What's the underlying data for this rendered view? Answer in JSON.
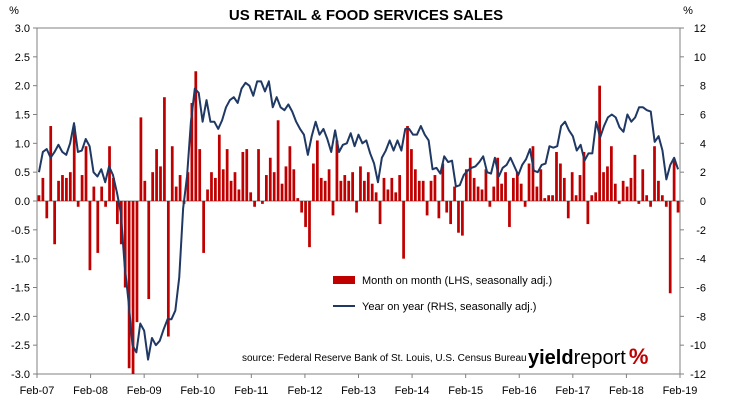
{
  "chart_data": {
    "type": "bar",
    "title": "US RETAIL & FOOD SERVICES SALES",
    "left_unit": "%",
    "right_unit": "%",
    "x_labels": [
      "Feb-07",
      "Feb-08",
      "Feb-09",
      "Feb-10",
      "Feb-11",
      "Feb-12",
      "Feb-13",
      "Feb-14",
      "Feb-15",
      "Feb-16",
      "Feb-17",
      "Feb-18",
      "Feb-19"
    ],
    "left_ticks": [
      "3.0",
      "2.5",
      "2.0",
      "1.5",
      "1.0",
      "0.5",
      "0.0",
      "-0.5",
      "-1.0",
      "-1.5",
      "-2.0",
      "-2.5",
      "-3.0"
    ],
    "right_ticks": [
      "12",
      "10",
      "8",
      "6",
      "4",
      "2",
      "0",
      "-2",
      "-4",
      "-6",
      "-8",
      "-10",
      "-12"
    ],
    "ylim_left": [
      -3,
      3
    ],
    "ylim_right": [
      -12,
      12
    ],
    "series": [
      {
        "name": "Month on month (LHS, seasonally adj.)",
        "kind": "bar",
        "color": "#c00000",
        "axis": "left",
        "values": [
          0.1,
          0.4,
          -0.3,
          1.3,
          -0.75,
          0.35,
          0.45,
          0.4,
          0.5,
          1.3,
          -0.1,
          0.45,
          0.95,
          -1.2,
          0.25,
          -0.9,
          0.25,
          -0.1,
          0.95,
          0.4,
          -0.4,
          -0.75,
          -1.5,
          -2.9,
          -3.0,
          -2.1,
          1.45,
          0.35,
          -1.7,
          0.5,
          0.9,
          0.6,
          1.8,
          -2.35,
          0.95,
          0.25,
          0.45,
          -0.05,
          0.5,
          1.7,
          2.25,
          0.9,
          -0.9,
          0.2,
          0.5,
          0.4,
          1.15,
          0.55,
          0.9,
          0.35,
          0.5,
          0.2,
          0.85,
          0.9,
          0.15,
          -0.1,
          0.9,
          -0.05,
          0.45,
          0.75,
          0.5,
          1.4,
          0.3,
          0.6,
          0.95,
          0.55,
          0.05,
          -0.2,
          -0.45,
          -0.8,
          0.65,
          1.05,
          0.4,
          0.35,
          0.55,
          -0.25,
          1.05,
          0.35,
          0.45,
          0.35,
          0.5,
          -0.2,
          0.6,
          0.35,
          0.5,
          0.3,
          0.15,
          -0.4,
          0.4,
          0.2,
          0.4,
          0.15,
          0.45,
          -1.0,
          1.3,
          0.9,
          0.55,
          0.35,
          0.35,
          -0.25,
          0.35,
          0.45,
          -0.3,
          0.65,
          -0.2,
          -0.4,
          0.25,
          -0.55,
          -0.6,
          0.55,
          0.75,
          0.4,
          0.25,
          0.2,
          0.55,
          -0.1,
          0.25,
          0.75,
          0.3,
          0.5,
          -0.45,
          0.4,
          0.5,
          0.3,
          -0.1,
          0.65,
          0.95,
          0.25,
          0.55,
          0.05,
          0.1,
          0.1,
          0.85,
          0.65,
          0.4,
          -0.3,
          0.5,
          0.1,
          0.45,
          0.85,
          -0.4,
          0.1,
          0.15,
          2.0,
          0.5,
          0.6,
          0.95,
          0.3,
          -0.05,
          0.35,
          0.25,
          0.4,
          0.8,
          -0.05,
          0.55,
          0.1,
          -0.1,
          0.95,
          0.35,
          0.1,
          -0.1,
          -1.6,
          0.7,
          -0.2
        ]
      },
      {
        "name": "Year on year (RHS, seasonally adj.)",
        "kind": "line",
        "color": "#1f3864",
        "axis": "right",
        "values": [
          2.0,
          3.4,
          3.6,
          3.0,
          3.4,
          3.9,
          3.4,
          3.2,
          4.0,
          5.4,
          3.4,
          3.5,
          4.3,
          3.8,
          2.0,
          1.7,
          2.2,
          1.3,
          2.4,
          1.8,
          0.6,
          -0.8,
          -4.5,
          -7.0,
          -10.0,
          -10.5,
          -8.5,
          -9.0,
          -11.0,
          -9.5,
          -10.0,
          -9.7,
          -8.9,
          -8.2,
          -8.2,
          -7.6,
          -5.3,
          -0.5,
          1.7,
          5.5,
          7.8,
          7.5,
          5.5,
          7.0,
          5.5,
          5.5,
          5.0,
          5.6,
          6.5,
          7.0,
          7.2,
          6.8,
          7.8,
          8.2,
          8.0,
          7.3,
          8.3,
          8.3,
          7.6,
          8.3,
          6.5,
          7.2,
          6.5,
          6.3,
          6.7,
          6.2,
          5.5,
          5.0,
          4.6,
          3.2,
          4.5,
          5.5,
          4.6,
          5.0,
          4.3,
          3.4,
          4.9,
          3.4,
          3.9,
          4.0,
          4.7,
          3.8,
          4.6,
          4.0,
          4.2,
          3.3,
          2.6,
          1.3,
          3.0,
          3.5,
          4.2,
          3.5,
          4.2,
          3.5,
          5.0,
          5.0,
          4.6,
          4.6,
          5.2,
          4.6,
          4.2,
          2.2,
          2.3,
          1.9,
          3.1,
          2.7,
          2.8,
          1.0,
          1.1,
          1.8,
          2.1,
          2.3,
          2.4,
          2.7,
          3.1,
          2.0,
          1.9,
          3.0,
          1.7,
          2.3,
          2.5,
          3.0,
          2.4,
          1.8,
          2.5,
          2.9,
          3.6,
          2.1,
          2.0,
          2.5,
          2.6,
          3.8,
          3.7,
          3.8,
          5.2,
          5.5,
          4.9,
          4.5,
          3.5,
          3.9,
          2.8,
          3.3,
          3.3,
          5.5,
          4.4,
          5.2,
          5.8,
          6.0,
          5.8,
          5.1,
          4.8,
          6.0,
          5.5,
          5.8,
          6.5,
          6.5,
          6.3,
          6.2,
          4.1,
          4.5,
          3.5,
          1.5,
          2.5,
          3.0,
          2.2
        ]
      }
    ],
    "legend": {
      "bar_label": "Month on month (LHS, seasonally adj.)",
      "line_label": "Year on year (RHS, seasonally adj.)",
      "placement": "lower-center"
    },
    "source": "source: Federal Reserve Bank of St. Louis, U.S. Census Bureau",
    "logo": {
      "part1": "yield",
      "part2": "report",
      "part3": "%"
    },
    "grid": false
  }
}
